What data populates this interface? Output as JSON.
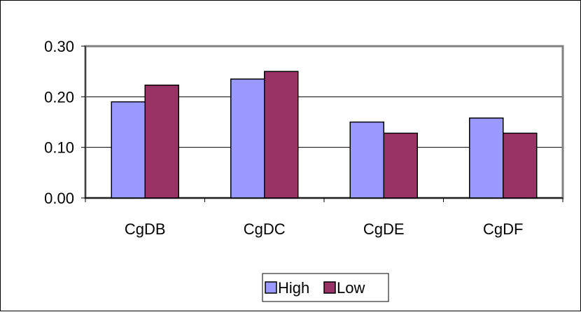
{
  "chart_data": {
    "type": "bar",
    "categories": [
      "CgDB",
      "CgDC",
      "CgDE",
      "CgDF"
    ],
    "series": [
      {
        "name": "High",
        "values": [
          0.19,
          0.235,
          0.15,
          0.158
        ],
        "color": "#9999FF"
      },
      {
        "name": "Low",
        "values": [
          0.223,
          0.25,
          0.128,
          0.128
        ],
        "color": "#993366"
      }
    ],
    "ylim": [
      0,
      0.3
    ],
    "yticks": [
      "0.00",
      "0.10",
      "0.20",
      "0.30"
    ],
    "ytick_values": [
      0,
      0.1,
      0.2,
      0.3
    ],
    "grid": true,
    "legend_position": "bottom",
    "plot_background": "#FFFFFF",
    "gridline_color": "#000000",
    "plot_border_color": "#808080"
  }
}
